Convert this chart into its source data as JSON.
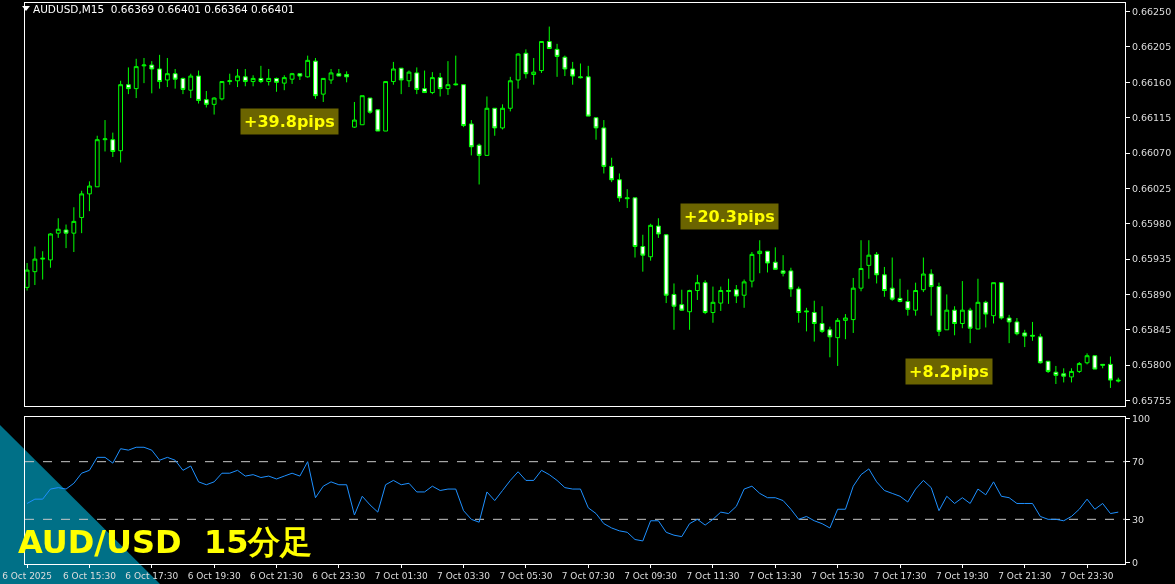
{
  "chart_data": [
    {
      "type": "candlestick",
      "title": "AUDUSD,M15  0.66369 0.66401 0.66364 0.66401",
      "color": "#00ff00",
      "tick_labels": "y",
      "xlim": [
        "2025-10-06T13:26",
        "2025-10-08T00:43"
      ],
      "ylim": [
        0.65748,
        0.66261
      ],
      "yticks": [
        {
          "value": 0.6625,
          "label": "0.66250"
        },
        {
          "value": 0.66205,
          "label": "0.66205"
        },
        {
          "value": 0.6616,
          "label": "0.66160"
        },
        {
          "value": 0.66115,
          "label": "0.66115"
        },
        {
          "value": 0.6607,
          "label": "0.66070"
        },
        {
          "value": 0.66025,
          "label": "0.66025"
        },
        {
          "value": 0.6598,
          "label": "0.65980"
        },
        {
          "value": 0.65935,
          "label": "0.65935"
        },
        {
          "value": 0.6589,
          "label": "0.65890"
        },
        {
          "value": 0.65845,
          "label": "0.65845"
        },
        {
          "value": 0.658,
          "label": "0.65800"
        },
        {
          "value": 0.65755,
          "label": "0.65755"
        }
      ],
      "x": [
        "2025-10-06T13:30",
        "2025-10-06T13:45",
        "2025-10-06T14:00",
        "2025-10-06T14:15",
        "2025-10-06T14:30",
        "2025-10-06T14:45",
        "2025-10-06T15:00",
        "2025-10-06T15:15",
        "2025-10-06T15:30",
        "2025-10-06T15:45",
        "2025-10-06T16:00",
        "2025-10-06T16:15",
        "2025-10-06T16:30",
        "2025-10-06T16:45",
        "2025-10-06T17:00",
        "2025-10-06T17:15",
        "2025-10-06T17:30",
        "2025-10-06T17:45",
        "2025-10-06T18:00",
        "2025-10-06T18:15",
        "2025-10-06T18:30",
        "2025-10-06T18:45",
        "2025-10-06T19:00",
        "2025-10-06T19:15",
        "2025-10-06T19:30",
        "2025-10-06T19:45",
        "2025-10-06T20:00",
        "2025-10-06T20:15",
        "2025-10-06T20:30",
        "2025-10-06T20:45",
        "2025-10-06T21:00",
        "2025-10-06T21:15",
        "2025-10-06T21:30",
        "2025-10-06T21:45",
        "2025-10-06T22:00",
        "2025-10-06T22:15",
        "2025-10-06T22:30",
        "2025-10-06T22:45",
        "2025-10-06T23:00",
        "2025-10-06T23:15",
        "2025-10-06T23:30",
        "2025-10-06T23:45",
        "2025-10-07T00:00",
        "2025-10-07T00:15",
        "2025-10-07T00:30",
        "2025-10-07T00:45",
        "2025-10-07T01:00",
        "2025-10-07T01:15",
        "2025-10-07T01:30",
        "2025-10-07T01:45",
        "2025-10-07T02:00",
        "2025-10-07T02:15",
        "2025-10-07T02:30",
        "2025-10-07T02:45",
        "2025-10-07T03:00",
        "2025-10-07T03:15",
        "2025-10-07T03:30",
        "2025-10-07T03:45",
        "2025-10-07T04:00",
        "2025-10-07T04:15",
        "2025-10-07T04:30",
        "2025-10-07T04:45",
        "2025-10-07T05:00",
        "2025-10-07T05:15",
        "2025-10-07T05:30",
        "2025-10-07T05:45",
        "2025-10-07T06:00",
        "2025-10-07T06:15",
        "2025-10-07T06:30",
        "2025-10-07T06:45",
        "2025-10-07T07:00",
        "2025-10-07T07:15",
        "2025-10-07T07:30",
        "2025-10-07T07:45",
        "2025-10-07T08:00",
        "2025-10-07T08:15",
        "2025-10-07T08:30",
        "2025-10-07T08:45",
        "2025-10-07T09:00",
        "2025-10-07T09:15",
        "2025-10-07T09:30",
        "2025-10-07T09:45",
        "2025-10-07T10:00",
        "2025-10-07T10:15",
        "2025-10-07T10:30",
        "2025-10-07T10:45",
        "2025-10-07T11:00",
        "2025-10-07T11:15",
        "2025-10-07T11:30",
        "2025-10-07T11:45",
        "2025-10-07T12:00",
        "2025-10-07T12:15",
        "2025-10-07T12:30",
        "2025-10-07T12:45",
        "2025-10-07T13:00",
        "2025-10-07T13:15",
        "2025-10-07T13:30",
        "2025-10-07T13:45",
        "2025-10-07T14:00",
        "2025-10-07T14:15",
        "2025-10-07T14:30",
        "2025-10-07T14:45",
        "2025-10-07T15:00",
        "2025-10-07T15:15",
        "2025-10-07T15:30",
        "2025-10-07T15:45",
        "2025-10-07T16:00",
        "2025-10-07T16:15",
        "2025-10-07T16:30",
        "2025-10-07T16:45",
        "2025-10-07T17:00",
        "2025-10-07T17:15",
        "2025-10-07T17:30",
        "2025-10-07T17:45",
        "2025-10-07T18:00",
        "2025-10-07T18:15",
        "2025-10-07T18:30",
        "2025-10-07T18:45",
        "2025-10-07T19:00",
        "2025-10-07T19:15",
        "2025-10-07T19:30",
        "2025-10-07T19:45",
        "2025-10-07T20:00",
        "2025-10-07T20:15",
        "2025-10-07T20:30",
        "2025-10-07T20:45",
        "2025-10-07T21:00",
        "2025-10-07T21:15",
        "2025-10-07T21:30",
        "2025-10-07T21:45",
        "2025-10-07T22:00",
        "2025-10-07T22:15",
        "2025-10-07T22:30",
        "2025-10-07T22:45",
        "2025-10-07T23:00",
        "2025-10-07T23:15",
        "2025-10-07T23:30",
        "2025-10-07T23:45",
        "2025-10-08T00:00",
        "2025-10-08T00:15",
        "2025-10-08T00:30"
      ],
      "ohlc": [
        [
          0.65899,
          0.6593,
          0.65895,
          0.65921
        ],
        [
          0.65919,
          0.65951,
          0.65902,
          0.65935
        ],
        [
          0.65935,
          0.65945,
          0.65909,
          0.65936
        ],
        [
          0.65934,
          0.65968,
          0.65924,
          0.65967
        ],
        [
          0.65968,
          0.65987,
          0.65962,
          0.65973
        ],
        [
          0.65972,
          0.65979,
          0.65949,
          0.65968
        ],
        [
          0.65968,
          0.66001,
          0.65944,
          0.65983
        ],
        [
          0.65988,
          0.66022,
          0.65968,
          0.66018
        ],
        [
          0.66018,
          0.66034,
          0.65996,
          0.66028
        ],
        [
          0.66027,
          0.66092,
          0.66027,
          0.66087
        ],
        [
          0.66087,
          0.66112,
          0.66072,
          0.66088
        ],
        [
          0.66087,
          0.66096,
          0.66065,
          0.66072
        ],
        [
          0.66073,
          0.66162,
          0.66058,
          0.66157
        ],
        [
          0.66157,
          0.66179,
          0.66145,
          0.66152
        ],
        [
          0.66152,
          0.6619,
          0.6614,
          0.6618
        ],
        [
          0.66181,
          0.66191,
          0.66159,
          0.66182
        ],
        [
          0.66182,
          0.66187,
          0.66146,
          0.66177
        ],
        [
          0.66177,
          0.66195,
          0.66152,
          0.66161
        ],
        [
          0.66163,
          0.66191,
          0.66154,
          0.66171
        ],
        [
          0.66171,
          0.66177,
          0.66152,
          0.66164
        ],
        [
          0.66165,
          0.66166,
          0.66145,
          0.66151
        ],
        [
          0.6615,
          0.66171,
          0.6614,
          0.66168
        ],
        [
          0.66168,
          0.66175,
          0.66133,
          0.66137
        ],
        [
          0.66138,
          0.66149,
          0.66128,
          0.66132
        ],
        [
          0.66132,
          0.66141,
          0.66119,
          0.6614
        ],
        [
          0.66139,
          0.66161,
          0.66137,
          0.66161
        ],
        [
          0.66161,
          0.66171,
          0.66157,
          0.66162
        ],
        [
          0.66162,
          0.66177,
          0.66154,
          0.66168
        ],
        [
          0.66167,
          0.66177,
          0.66155,
          0.66161
        ],
        [
          0.66161,
          0.66169,
          0.66155,
          0.66165
        ],
        [
          0.66165,
          0.66181,
          0.66159,
          0.66161
        ],
        [
          0.66161,
          0.66177,
          0.66156,
          0.66165
        ],
        [
          0.66165,
          0.66166,
          0.66148,
          0.6616
        ],
        [
          0.66159,
          0.66169,
          0.6615,
          0.66166
        ],
        [
          0.66164,
          0.66172,
          0.66158,
          0.66171
        ],
        [
          0.66171,
          0.66171,
          0.66163,
          0.66168
        ],
        [
          0.66167,
          0.66194,
          0.66166,
          0.66188
        ],
        [
          0.66187,
          0.66191,
          0.66139,
          0.66143
        ],
        [
          0.66145,
          0.66165,
          0.66135,
          0.66165
        ],
        [
          0.66163,
          0.66177,
          0.66158,
          0.66172
        ],
        [
          0.66171,
          0.66177,
          0.66168,
          0.66168
        ],
        [
          0.6617,
          0.66174,
          0.6616,
          0.66167
        ],
        [
          0.66103,
          0.66135,
          0.66102,
          0.66112
        ],
        [
          0.66106,
          0.66143,
          0.66106,
          0.66143
        ],
        [
          0.6614,
          0.6614,
          0.6612,
          0.66122
        ],
        [
          0.66125,
          0.66126,
          0.66098,
          0.66098
        ],
        [
          0.66098,
          0.66161,
          0.66098,
          0.66161
        ],
        [
          0.66161,
          0.66186,
          0.66157,
          0.66177
        ],
        [
          0.66178,
          0.66178,
          0.66145,
          0.66163
        ],
        [
          0.66162,
          0.66175,
          0.66154,
          0.66173
        ],
        [
          0.66172,
          0.66179,
          0.66145,
          0.66151
        ],
        [
          0.66152,
          0.66175,
          0.66147,
          0.66147
        ],
        [
          0.66147,
          0.66173,
          0.66145,
          0.66166
        ],
        [
          0.66166,
          0.66172,
          0.66142,
          0.66152
        ],
        [
          0.66152,
          0.66187,
          0.66144,
          0.66157
        ],
        [
          0.66158,
          0.66194,
          0.66156,
          0.66157
        ],
        [
          0.66157,
          0.66157,
          0.66103,
          0.66105
        ],
        [
          0.66107,
          0.66112,
          0.66067,
          0.66078
        ],
        [
          0.6608,
          0.66082,
          0.6603,
          0.66067
        ],
        [
          0.66067,
          0.66142,
          0.66067,
          0.66127
        ],
        [
          0.66127,
          0.66127,
          0.66092,
          0.66102
        ],
        [
          0.66102,
          0.66132,
          0.661,
          0.66127
        ],
        [
          0.66127,
          0.66167,
          0.66123,
          0.66162
        ],
        [
          0.66163,
          0.66197,
          0.66152,
          0.66196
        ],
        [
          0.66197,
          0.66202,
          0.66165,
          0.66171
        ],
        [
          0.6617,
          0.66191,
          0.66157,
          0.66173
        ],
        [
          0.66175,
          0.66212,
          0.66172,
          0.66212
        ],
        [
          0.66212,
          0.66231,
          0.66203,
          0.66203
        ],
        [
          0.66202,
          0.66209,
          0.66167,
          0.66193
        ],
        [
          0.66192,
          0.66194,
          0.66168,
          0.66177
        ],
        [
          0.66177,
          0.66186,
          0.66157,
          0.66168
        ],
        [
          0.66167,
          0.66184,
          0.66165,
          0.66166
        ],
        [
          0.66167,
          0.66181,
          0.66117,
          0.66117
        ],
        [
          0.66115,
          0.66115,
          0.66087,
          0.66102
        ],
        [
          0.66102,
          0.66112,
          0.66044,
          0.66053
        ],
        [
          0.66053,
          0.66064,
          0.66033,
          0.66036
        ],
        [
          0.66036,
          0.66044,
          0.66008,
          0.66013
        ],
        [
          0.66013,
          0.66024,
          0.66,
          0.66012
        ],
        [
          0.66013,
          0.66013,
          0.65937,
          0.65951
        ],
        [
          0.65951,
          0.65966,
          0.65919,
          0.6594
        ],
        [
          0.65938,
          0.6598,
          0.65933,
          0.65978
        ],
        [
          0.65977,
          0.65987,
          0.65962,
          0.65967
        ],
        [
          0.65966,
          0.65967,
          0.65879,
          0.65889
        ],
        [
          0.6589,
          0.65904,
          0.65845,
          0.65875
        ],
        [
          0.65877,
          0.65896,
          0.65869,
          0.6587
        ],
        [
          0.65868,
          0.65896,
          0.65845,
          0.65895
        ],
        [
          0.65895,
          0.65915,
          0.65883,
          0.65905
        ],
        [
          0.65905,
          0.65908,
          0.65865,
          0.65867
        ],
        [
          0.65867,
          0.659,
          0.65854,
          0.6588
        ],
        [
          0.65879,
          0.659,
          0.65869,
          0.65895
        ],
        [
          0.65895,
          0.6591,
          0.65878,
          0.65894
        ],
        [
          0.65896,
          0.65902,
          0.65879,
          0.65888
        ],
        [
          0.65889,
          0.65909,
          0.65873,
          0.65906
        ],
        [
          0.65907,
          0.65944,
          0.65899,
          0.65941
        ],
        [
          0.65942,
          0.65959,
          0.65917,
          0.65945
        ],
        [
          0.65945,
          0.65945,
          0.65918,
          0.6593
        ],
        [
          0.65931,
          0.6595,
          0.65922,
          0.65922
        ],
        [
          0.6592,
          0.6594,
          0.65913,
          0.65917
        ],
        [
          0.6592,
          0.65924,
          0.65887,
          0.65897
        ],
        [
          0.65897,
          0.659,
          0.65854,
          0.65867
        ],
        [
          0.65869,
          0.65873,
          0.65843,
          0.65868
        ],
        [
          0.65867,
          0.65882,
          0.6583,
          0.65853
        ],
        [
          0.65853,
          0.65875,
          0.65841,
          0.65843
        ],
        [
          0.65845,
          0.65849,
          0.6581,
          0.65836
        ],
        [
          0.65835,
          0.6586,
          0.65799,
          0.65857
        ],
        [
          0.65857,
          0.65865,
          0.65833,
          0.6586
        ],
        [
          0.65858,
          0.65911,
          0.65841,
          0.65898
        ],
        [
          0.65898,
          0.65959,
          0.65894,
          0.65923
        ],
        [
          0.65927,
          0.65959,
          0.6591,
          0.6594
        ],
        [
          0.65941,
          0.65944,
          0.65904,
          0.65915
        ],
        [
          0.65915,
          0.65925,
          0.65887,
          0.65895
        ],
        [
          0.65898,
          0.65937,
          0.65882,
          0.65884
        ],
        [
          0.65885,
          0.6591,
          0.6588,
          0.65881
        ],
        [
          0.65881,
          0.65896,
          0.65863,
          0.65871
        ],
        [
          0.6587,
          0.65905,
          0.65863,
          0.65895
        ],
        [
          0.65896,
          0.65937,
          0.65893,
          0.65916
        ],
        [
          0.65916,
          0.65922,
          0.65863,
          0.659
        ],
        [
          0.659,
          0.65905,
          0.65837,
          0.65843
        ],
        [
          0.65845,
          0.6589,
          0.65845,
          0.6587
        ],
        [
          0.6587,
          0.65875,
          0.65838,
          0.65853
        ],
        [
          0.65853,
          0.65907,
          0.65847,
          0.6587
        ],
        [
          0.6587,
          0.65873,
          0.65828,
          0.65847
        ],
        [
          0.65846,
          0.6591,
          0.65846,
          0.6588
        ],
        [
          0.6588,
          0.65882,
          0.65848,
          0.65865
        ],
        [
          0.65863,
          0.65905,
          0.65853,
          0.65905
        ],
        [
          0.65905,
          0.65905,
          0.65858,
          0.6586
        ],
        [
          0.6586,
          0.65864,
          0.65828,
          0.65855
        ],
        [
          0.65855,
          0.6586,
          0.65838,
          0.6584
        ],
        [
          0.65841,
          0.65845,
          0.65823,
          0.65837
        ],
        [
          0.65838,
          0.65855,
          0.65831,
          0.65837
        ],
        [
          0.65836,
          0.6584,
          0.65802,
          0.65803
        ],
        [
          0.65805,
          0.65805,
          0.6579,
          0.65792
        ],
        [
          0.65791,
          0.65799,
          0.65776,
          0.65787
        ],
        [
          0.65789,
          0.65796,
          0.65778,
          0.65786
        ],
        [
          0.65785,
          0.65796,
          0.65778,
          0.65792
        ],
        [
          0.65792,
          0.65804,
          0.6579,
          0.65802
        ],
        [
          0.65803,
          0.65815,
          0.65801,
          0.65812
        ],
        [
          0.65812,
          0.65812,
          0.65795,
          0.65795
        ],
        [
          0.65801,
          0.65801,
          0.65796,
          0.658
        ],
        [
          0.65801,
          0.65811,
          0.65771,
          0.65781
        ],
        [
          0.65781,
          0.65784,
          0.65778,
          0.6578
        ]
      ],
      "annotations": [
        "+39.8pips",
        "+20.3pips",
        "+8.2pips"
      ]
    },
    {
      "type": "line",
      "xlim": [
        "2025-10-06T13:26",
        "2025-10-08T00:43"
      ],
      "ylim": [
        -1,
        101
      ],
      "yticks": [
        0,
        30,
        70,
        100
      ],
      "xticks": [
        {
          "value": "2025-10-06T13:30",
          "label": "6 Oct 2025"
        },
        {
          "value": "2025-10-06T15:30",
          "label": "6 Oct 15:30"
        },
        {
          "value": "2025-10-06T17:30",
          "label": "6 Oct 17:30"
        },
        {
          "value": "2025-10-06T19:30",
          "label": "6 Oct 19:30"
        },
        {
          "value": "2025-10-06T21:30",
          "label": "6 Oct 21:30"
        },
        {
          "value": "2025-10-06T23:30",
          "label": "6 Oct 23:30"
        },
        {
          "value": "2025-10-07T01:30",
          "label": "7 Oct 01:30"
        },
        {
          "value": "2025-10-07T03:30",
          "label": "7 Oct 03:30"
        },
        {
          "value": "2025-10-07T05:30",
          "label": "7 Oct 05:30"
        },
        {
          "value": "2025-10-07T07:30",
          "label": "7 Oct 07:30"
        },
        {
          "value": "2025-10-07T09:30",
          "label": "7 Oct 09:30"
        },
        {
          "value": "2025-10-07T11:30",
          "label": "7 Oct 11:30"
        },
        {
          "value": "2025-10-07T13:30",
          "label": "7 Oct 13:30"
        },
        {
          "value": "2025-10-07T15:30",
          "label": "7 Oct 15:30"
        },
        {
          "value": "2025-10-07T17:30",
          "label": "7 Oct 17:30"
        },
        {
          "value": "2025-10-07T19:30",
          "label": "7 Oct 19:30"
        },
        {
          "value": "2025-10-07T21:30",
          "label": "7 Oct 21:30"
        },
        {
          "value": "2025-10-07T23:30",
          "label": "7 Oct 23:30"
        }
      ],
      "ref_lines": [
        {
          "axis": "y",
          "value": 70,
          "color": "#c8c8c8",
          "line_style": "dashed"
        },
        {
          "axis": "y",
          "value": 30,
          "color": "#c8c8c8",
          "line_style": "dashed"
        }
      ],
      "annotations": [
        "AUD/USD  15分足"
      ],
      "series": [
        {
          "color": "#1e90ff",
          "x": [
            "2025-10-06T13:30",
            "2025-10-06T13:45",
            "2025-10-06T14:00",
            "2025-10-06T14:15",
            "2025-10-06T14:30",
            "2025-10-06T14:45",
            "2025-10-06T15:00",
            "2025-10-06T15:15",
            "2025-10-06T15:30",
            "2025-10-06T15:45",
            "2025-10-06T16:00",
            "2025-10-06T16:15",
            "2025-10-06T16:30",
            "2025-10-06T16:45",
            "2025-10-06T17:00",
            "2025-10-06T17:15",
            "2025-10-06T17:30",
            "2025-10-06T17:45",
            "2025-10-06T18:00",
            "2025-10-06T18:15",
            "2025-10-06T18:30",
            "2025-10-06T18:45",
            "2025-10-06T19:00",
            "2025-10-06T19:15",
            "2025-10-06T19:30",
            "2025-10-06T19:45",
            "2025-10-06T20:00",
            "2025-10-06T20:15",
            "2025-10-06T20:30",
            "2025-10-06T20:45",
            "2025-10-06T21:00",
            "2025-10-06T21:15",
            "2025-10-06T21:30",
            "2025-10-06T21:45",
            "2025-10-06T22:00",
            "2025-10-06T22:15",
            "2025-10-06T22:30",
            "2025-10-06T22:45",
            "2025-10-06T23:00",
            "2025-10-06T23:15",
            "2025-10-06T23:30",
            "2025-10-06T23:45",
            "2025-10-07T00:00",
            "2025-10-07T00:15",
            "2025-10-07T00:30",
            "2025-10-07T00:45",
            "2025-10-07T01:00",
            "2025-10-07T01:15",
            "2025-10-07T01:30",
            "2025-10-07T01:45",
            "2025-10-07T02:00",
            "2025-10-07T02:15",
            "2025-10-07T02:30",
            "2025-10-07T02:45",
            "2025-10-07T03:00",
            "2025-10-07T03:15",
            "2025-10-07T03:30",
            "2025-10-07T03:45",
            "2025-10-07T04:00",
            "2025-10-07T04:15",
            "2025-10-07T04:30",
            "2025-10-07T04:45",
            "2025-10-07T05:00",
            "2025-10-07T05:15",
            "2025-10-07T05:30",
            "2025-10-07T05:45",
            "2025-10-07T06:00",
            "2025-10-07T06:15",
            "2025-10-07T06:30",
            "2025-10-07T06:45",
            "2025-10-07T07:00",
            "2025-10-07T07:15",
            "2025-10-07T07:30",
            "2025-10-07T07:45",
            "2025-10-07T08:00",
            "2025-10-07T08:15",
            "2025-10-07T08:30",
            "2025-10-07T08:45",
            "2025-10-07T09:00",
            "2025-10-07T09:15",
            "2025-10-07T09:30",
            "2025-10-07T09:45",
            "2025-10-07T10:00",
            "2025-10-07T10:15",
            "2025-10-07T10:30",
            "2025-10-07T10:45",
            "2025-10-07T11:00",
            "2025-10-07T11:15",
            "2025-10-07T11:30",
            "2025-10-07T11:45",
            "2025-10-07T12:00",
            "2025-10-07T12:15",
            "2025-10-07T12:30",
            "2025-10-07T12:45",
            "2025-10-07T13:00",
            "2025-10-07T13:15",
            "2025-10-07T13:30",
            "2025-10-07T13:45",
            "2025-10-07T14:00",
            "2025-10-07T14:15",
            "2025-10-07T14:30",
            "2025-10-07T14:45",
            "2025-10-07T15:00",
            "2025-10-07T15:15",
            "2025-10-07T15:30",
            "2025-10-07T15:45",
            "2025-10-07T16:00",
            "2025-10-07T16:15",
            "2025-10-07T16:30",
            "2025-10-07T16:45",
            "2025-10-07T17:00",
            "2025-10-07T17:15",
            "2025-10-07T17:30",
            "2025-10-07T17:45",
            "2025-10-07T18:00",
            "2025-10-07T18:15",
            "2025-10-07T18:30",
            "2025-10-07T18:45",
            "2025-10-07T19:00",
            "2025-10-07T19:15",
            "2025-10-07T19:30",
            "2025-10-07T19:45",
            "2025-10-07T20:00",
            "2025-10-07T20:15",
            "2025-10-07T20:30",
            "2025-10-07T20:45",
            "2025-10-07T21:00",
            "2025-10-07T21:15",
            "2025-10-07T21:30",
            "2025-10-07T21:45",
            "2025-10-07T22:00",
            "2025-10-07T22:15",
            "2025-10-07T22:30",
            "2025-10-07T22:45",
            "2025-10-07T23:00",
            "2025-10-07T23:15",
            "2025-10-07T23:30",
            "2025-10-07T23:45",
            "2025-10-08T00:00",
            "2025-10-08T00:15",
            "2025-10-08T00:30"
          ],
          "values": [
            41,
            44,
            44,
            51,
            52,
            51,
            55,
            62,
            64,
            73,
            73,
            69,
            79,
            78,
            80,
            80,
            78,
            71,
            73,
            71,
            64,
            67,
            56,
            54,
            56,
            62,
            62,
            64,
            60,
            61,
            59,
            60,
            58,
            60,
            62,
            60,
            70,
            45,
            53,
            56,
            54,
            54,
            33,
            46,
            40,
            35,
            54,
            57,
            54,
            55,
            49,
            49,
            53,
            50,
            51,
            51,
            36,
            30,
            28,
            49,
            43,
            50,
            57,
            63,
            57,
            57,
            64,
            61,
            57,
            52,
            51,
            51,
            38,
            34,
            27,
            24,
            22,
            21,
            16,
            15,
            29,
            29,
            21,
            19,
            18,
            27,
            30,
            26,
            30,
            35,
            34,
            39,
            51,
            53,
            48,
            45,
            45,
            43,
            37,
            30,
            32,
            29,
            27,
            24,
            37,
            37,
            53,
            61,
            65,
            56,
            50,
            48,
            46,
            42,
            51,
            57,
            52,
            36,
            46,
            41,
            45,
            41,
            51,
            47,
            56,
            46,
            45,
            41,
            41,
            41,
            32,
            30,
            30,
            29,
            32,
            37,
            44,
            37,
            41,
            34,
            35
          ]
        }
      ]
    }
  ]
}
